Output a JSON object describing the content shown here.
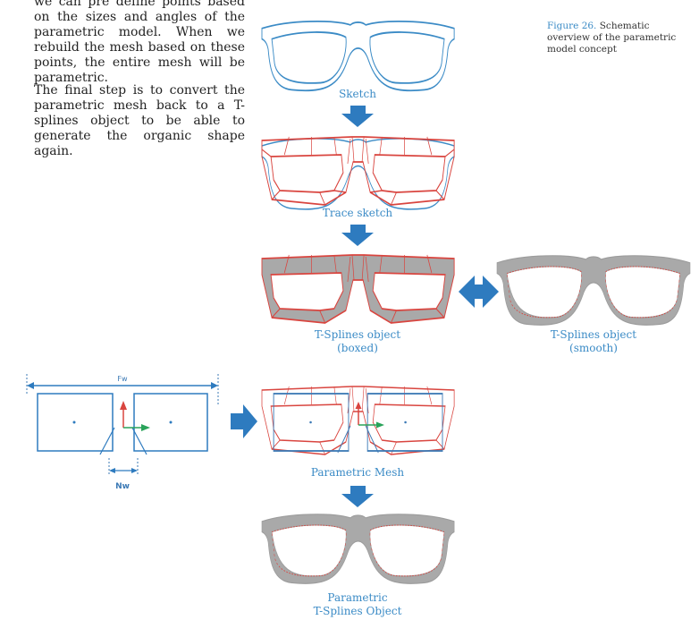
{
  "text": {
    "para1": "we can pre define points based on the sizes and angles of the parametric model. When we rebuild the mesh based on these points, the entire mesh will be parametric.",
    "para2": "The final step is to convert the parametric mesh back to a  T-splines object to be able to generate the organic shape again."
  },
  "figure": {
    "number": "Figure 26.",
    "caption": " Schematic overview of the parametric model concept"
  },
  "stages": {
    "sketch": "Sketch",
    "trace": "Trace sketch",
    "boxed_l1": "T-Splines object",
    "boxed_l2": "(boxed)",
    "smooth_l1": "T-Splines object",
    "smooth_l2": "(smooth)",
    "param_mesh": "Parametric Mesh",
    "final_l1": "Parametric",
    "final_l2": "T-Splines Object"
  },
  "dimensions": {
    "frame_width": "Fw",
    "nose_width": "Nw"
  },
  "colors": {
    "accent": "#3b8bc6",
    "mesh_red": "#d9453f",
    "fill_gray": "#a9a9a9"
  }
}
